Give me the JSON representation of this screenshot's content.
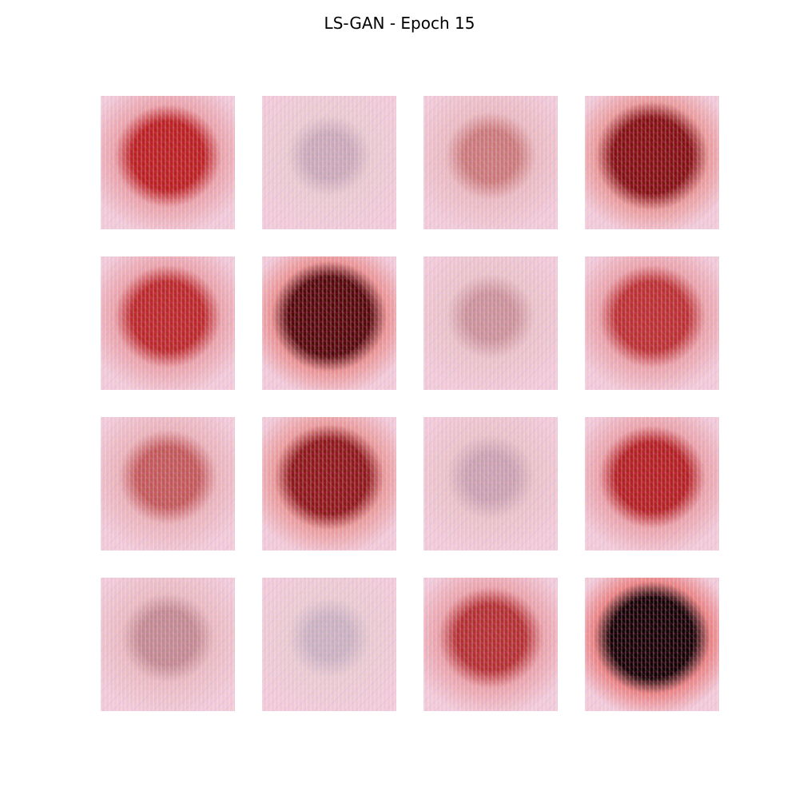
{
  "figure": {
    "title": "LS-GAN - Epoch 15"
  },
  "samples": [
    {
      "base": "#e8a0a8",
      "core": "#b82020",
      "intensity": 0.75
    },
    {
      "base": "#e8c8d0",
      "core": "#c8a8b8",
      "intensity": 0.25
    },
    {
      "base": "#e8b8c0",
      "core": "#c87878",
      "intensity": 0.4
    },
    {
      "base": "#e89898",
      "core": "#801010",
      "intensity": 0.9
    },
    {
      "base": "#e8a0a8",
      "core": "#b82828",
      "intensity": 0.75
    },
    {
      "base": "#e89090",
      "core": "#500808",
      "intensity": 0.95
    },
    {
      "base": "#e8c0c8",
      "core": "#c89098",
      "intensity": 0.3
    },
    {
      "base": "#e8a0a8",
      "core": "#b83030",
      "intensity": 0.75
    },
    {
      "base": "#e8b0b8",
      "core": "#c05858",
      "intensity": 0.55
    },
    {
      "base": "#e89898",
      "core": "#8a1818",
      "intensity": 0.85
    },
    {
      "base": "#e8c0c8",
      "core": "#c8a0b0",
      "intensity": 0.3
    },
    {
      "base": "#e8a0a8",
      "core": "#b02020",
      "intensity": 0.75
    },
    {
      "base": "#e8b8c0",
      "core": "#c08890",
      "intensity": 0.45
    },
    {
      "base": "#e8c8d0",
      "core": "#c8b0c0",
      "intensity": 0.2
    },
    {
      "base": "#e8a0a8",
      "core": "#b03030",
      "intensity": 0.7
    },
    {
      "base": "#e88080",
      "core": "#100000",
      "intensity": 1.0
    }
  ]
}
